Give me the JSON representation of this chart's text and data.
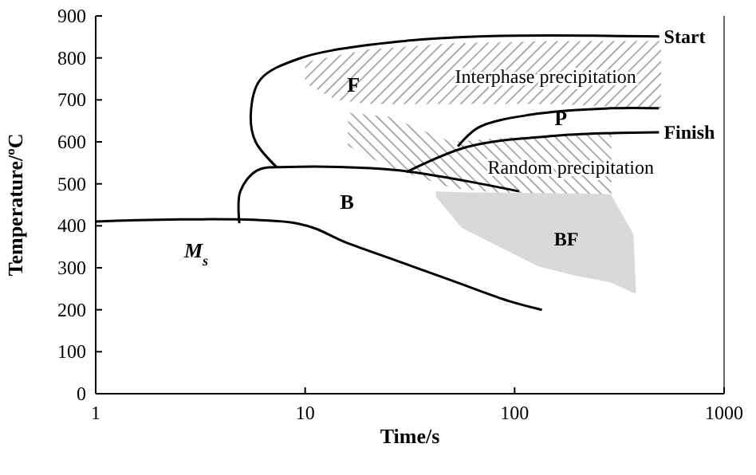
{
  "chart_data": {
    "type": "line",
    "xlabel": "Time/s",
    "ylabel": "Temperature/ºC",
    "log": "x",
    "xlim": [
      1,
      1000
    ],
    "xticks": [
      1,
      10,
      100,
      1000
    ],
    "ylim": [
      0,
      900
    ],
    "yticks": [
      0,
      100,
      200,
      300,
      400,
      500,
      600,
      700,
      800,
      900
    ],
    "grid": false,
    "marker": "none",
    "line_style": "solid",
    "series": [
      {
        "type": "area",
        "name": "Interphase precipitation",
        "color": "#8c8c8c",
        "x": [
          10,
          14,
          20,
          50,
          150,
          500,
          500,
          150,
          50,
          20,
          14,
          10
        ],
        "values": [
          790,
          805,
          820,
          835,
          840,
          840,
          680,
          690,
          690,
          690,
          700,
          740
        ]
      },
      {
        "type": "area",
        "name": "Random precipitation",
        "color": "#8c8c8c",
        "x": [
          16,
          25,
          50,
          100,
          290,
          290,
          100,
          50,
          25,
          16
        ],
        "values": [
          670,
          660,
          600,
          612,
          618,
          470,
          475,
          490,
          540,
          590
        ]
      },
      {
        "type": "area",
        "name": "BF",
        "color": "#d9d9d9",
        "x": [
          42,
          56,
          129,
          200,
          288,
          369,
          380,
          369,
          288,
          200,
          129,
          56,
          42
        ],
        "values": [
          482,
          480,
          478,
          477,
          475,
          380,
          240,
          240,
          265,
          280,
          304,
          395,
          470
        ]
      },
      {
        "name": "Start",
        "color": "#000000",
        "x": [
          7.3,
          5.8,
          5.5,
          6.1,
          9.3,
          21,
          67,
          490
        ],
        "values": [
          540,
          600,
          665,
          748,
          798,
          832,
          851,
          851
        ]
      },
      {
        "name": "Finish",
        "color": "#000000",
        "x": [
          30.5,
          59.5,
          162,
          489
        ],
        "values": [
          528,
          588,
          615,
          623
        ]
      },
      {
        "color": "#000000",
        "x": [
          53.6,
          67,
          120,
          288,
          489
        ],
        "values": [
          589,
          634,
          665,
          680,
          680
        ]
      },
      {
        "color": "#000000",
        "x": [
          4.85,
          4.9,
          5.9,
          8.3,
          28,
          105
        ],
        "values": [
          406,
          482,
          532,
          540,
          532,
          482
        ]
      },
      {
        "color": "#000000",
        "x": [
          1,
          9.3,
          15.7,
          28,
          50,
          95,
          135
        ],
        "values": [
          410,
          405,
          360,
          315,
          270,
          220,
          200
        ]
      }
    ],
    "annotations": [
      "F",
      "P",
      "B",
      "M$_{s}$"
    ]
  }
}
